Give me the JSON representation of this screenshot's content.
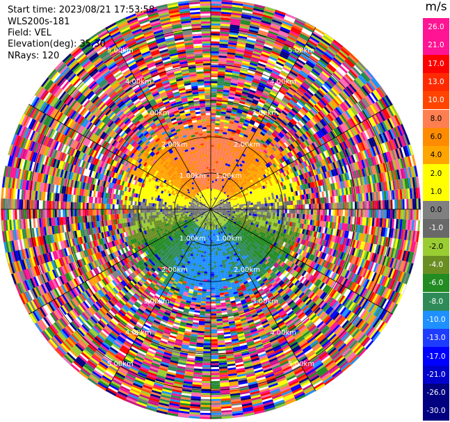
{
  "header": {
    "start_time": "Start time: 2023/08/21 17:53:58",
    "instrument": "WLS200s-181",
    "field": "Field: VEL",
    "elevation": "Elevation(deg): 35.30",
    "nrays": "NRays: 120"
  },
  "colorbar": {
    "unit": "m/s",
    "levels": [
      "26.0",
      "21.0",
      "17.0",
      "13.0",
      "10.0",
      "8.0",
      "6.0",
      "4.0",
      "2.0",
      "1.0",
      "0.0",
      "-1.0",
      "-2.0",
      "-4.0",
      "-6.0",
      "-8.0",
      "-10.0",
      "-13.0",
      "-17.0",
      "-21.0",
      "-26.0",
      "-30.0"
    ],
    "colors": [
      "#ff1493",
      "#ff1493",
      "#ff0000",
      "#ff2a00",
      "#ff4500",
      "#ff7f50",
      "#ff8c00",
      "#ffa500",
      "#ffff00",
      "#ffff00",
      "#808080",
      "#696969",
      "#9acd32",
      "#6b8e23",
      "#228b22",
      "#2e8b57",
      "#1e90ff",
      "#1e3cff",
      "#0000ff",
      "#0000cd",
      "#000080",
      "#000080"
    ]
  },
  "chart_data": {
    "type": "heatmap",
    "projection": "polar PPI",
    "field": "VEL",
    "unit": "m/s",
    "elevation_deg": 35.3,
    "n_rays": 120,
    "range_ring_labels": [
      "1.00km",
      "2.00km",
      "3.00km",
      "4.00km",
      "5.00km"
    ],
    "range_ring_values_km": [
      1,
      2,
      3,
      4,
      5
    ],
    "value_range": [
      -30,
      26
    ],
    "pattern": "positive (toward warm colors) to the north, negative (green/blue) to the south, noisy beyond ~2.5 km"
  }
}
